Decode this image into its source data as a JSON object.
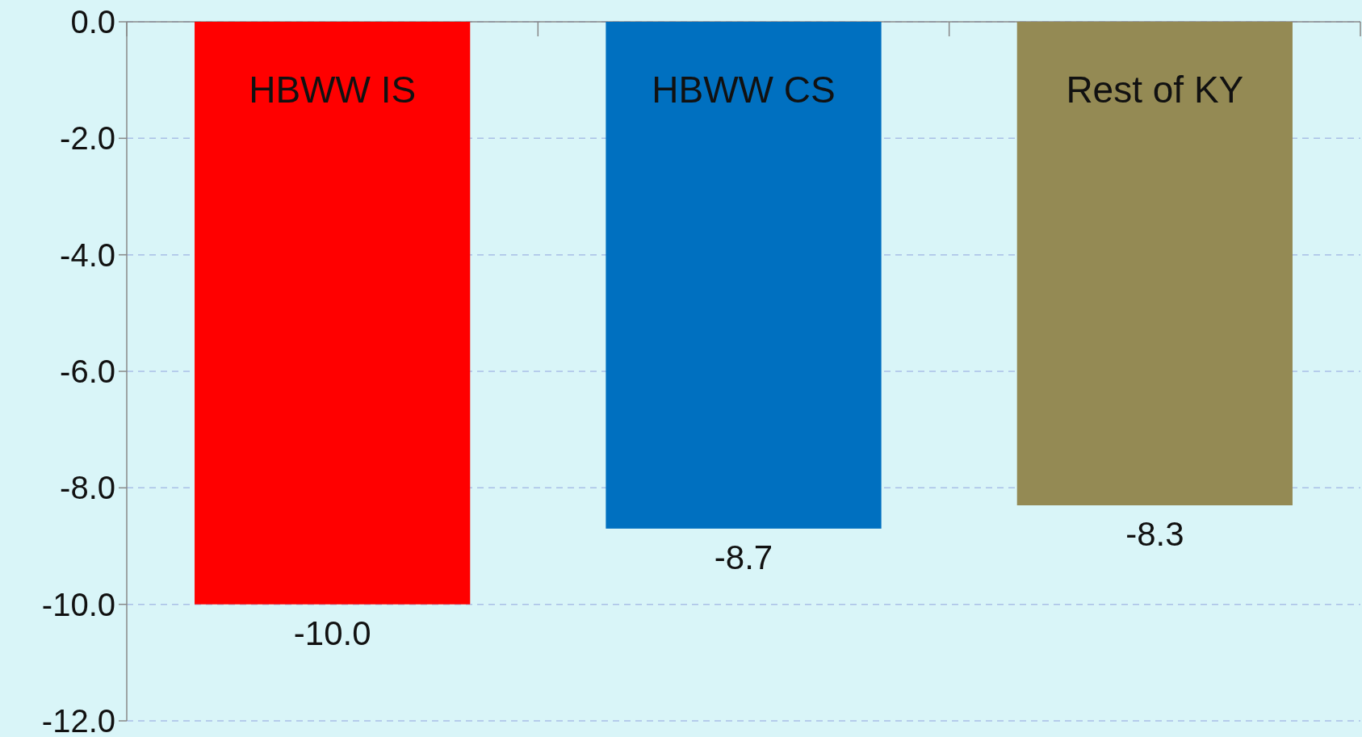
{
  "chart_data": {
    "type": "bar",
    "categories": [
      "HBWW IS",
      "HBWW CS",
      "Rest of KY"
    ],
    "values": [
      -10.0,
      -8.7,
      -8.3
    ],
    "colors": [
      "#ff0000",
      "#0070c0",
      "#948a54"
    ],
    "value_labels": [
      "-10.0",
      "-8.7",
      "-8.3"
    ],
    "ylim": [
      -12,
      0
    ],
    "yticks": [
      {
        "value": 0,
        "label": "0.0"
      },
      {
        "value": -2,
        "label": "-2.0"
      },
      {
        "value": -4,
        "label": "-4.0"
      },
      {
        "value": -6,
        "label": "-6.0"
      },
      {
        "value": -8,
        "label": "-8.0"
      },
      {
        "value": -10,
        "label": "-10.0"
      },
      {
        "value": -12,
        "label": "-12.0"
      }
    ],
    "grid": "y"
  }
}
